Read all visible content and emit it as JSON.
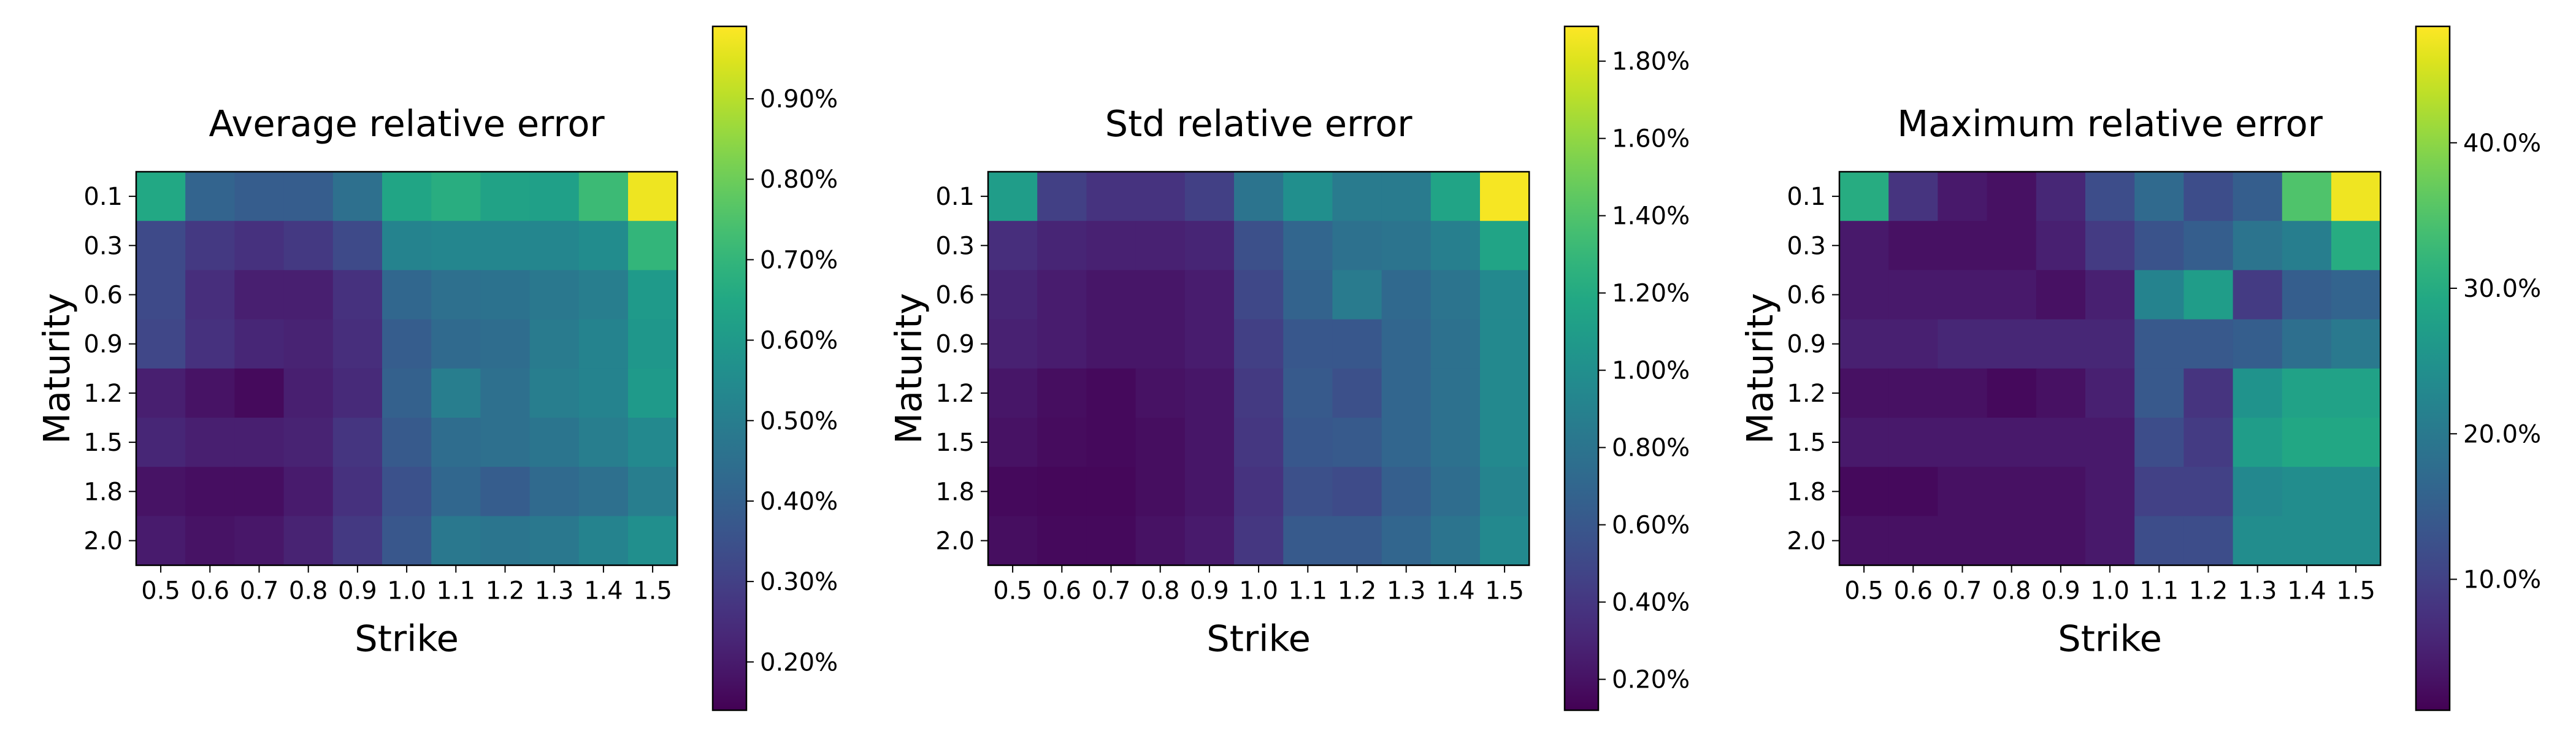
{
  "chart_data": [
    {
      "type": "heatmap",
      "title": "Average relative error",
      "xlabel": "Strike",
      "ylabel": "Maturity",
      "x_categories": [
        "0.5",
        "0.6",
        "0.7",
        "0.8",
        "0.9",
        "1.0",
        "1.1",
        "1.2",
        "1.3",
        "1.4",
        "1.5"
      ],
      "y_categories": [
        "0.1",
        "0.3",
        "0.6",
        "0.9",
        "1.2",
        "1.5",
        "1.8",
        "2.0"
      ],
      "colormap": "viridis",
      "clim": [
        0.14,
        0.99
      ],
      "colorbar_ticks": [
        {
          "value": 0.2,
          "label": "0.20%"
        },
        {
          "value": 0.3,
          "label": "0.30%"
        },
        {
          "value": 0.4,
          "label": "0.40%"
        },
        {
          "value": 0.5,
          "label": "0.50%"
        },
        {
          "value": 0.6,
          "label": "0.60%"
        },
        {
          "value": 0.7,
          "label": "0.70%"
        },
        {
          "value": 0.8,
          "label": "0.80%"
        },
        {
          "value": 0.9,
          "label": "0.90%"
        }
      ],
      "values": [
        [
          0.65,
          0.41,
          0.39,
          0.39,
          0.45,
          0.64,
          0.67,
          0.63,
          0.62,
          0.72,
          0.97
        ],
        [
          0.33,
          0.28,
          0.26,
          0.28,
          0.33,
          0.52,
          0.53,
          0.53,
          0.53,
          0.55,
          0.7
        ],
        [
          0.33,
          0.25,
          0.21,
          0.21,
          0.26,
          0.42,
          0.45,
          0.46,
          0.48,
          0.5,
          0.6
        ],
        [
          0.32,
          0.26,
          0.23,
          0.22,
          0.25,
          0.39,
          0.43,
          0.44,
          0.49,
          0.52,
          0.59
        ],
        [
          0.21,
          0.18,
          0.16,
          0.21,
          0.24,
          0.4,
          0.5,
          0.45,
          0.5,
          0.52,
          0.6
        ],
        [
          0.23,
          0.21,
          0.21,
          0.22,
          0.27,
          0.38,
          0.44,
          0.45,
          0.47,
          0.5,
          0.54
        ],
        [
          0.18,
          0.17,
          0.17,
          0.2,
          0.26,
          0.35,
          0.42,
          0.39,
          0.43,
          0.45,
          0.5
        ],
        [
          0.2,
          0.18,
          0.19,
          0.22,
          0.28,
          0.37,
          0.48,
          0.47,
          0.48,
          0.52,
          0.56
        ]
      ]
    },
    {
      "type": "heatmap",
      "title": "Std relative error",
      "xlabel": "Strike",
      "ylabel": "Maturity",
      "x_categories": [
        "0.5",
        "0.6",
        "0.7",
        "0.8",
        "0.9",
        "1.0",
        "1.1",
        "1.2",
        "1.3",
        "1.4",
        "1.5"
      ],
      "y_categories": [
        "0.1",
        "0.3",
        "0.6",
        "0.9",
        "1.2",
        "1.5",
        "1.8",
        "2.0"
      ],
      "colormap": "viridis",
      "clim": [
        0.12,
        1.89
      ],
      "colorbar_ticks": [
        {
          "value": 0.2,
          "label": "0.20%"
        },
        {
          "value": 0.4,
          "label": "0.40%"
        },
        {
          "value": 0.6,
          "label": "0.60%"
        },
        {
          "value": 0.8,
          "label": "0.80%"
        },
        {
          "value": 1.0,
          "label": "1.00%"
        },
        {
          "value": 1.2,
          "label": "1.20%"
        },
        {
          "value": 1.4,
          "label": "1.40%"
        },
        {
          "value": 1.6,
          "label": "1.60%"
        },
        {
          "value": 1.8,
          "label": "1.80%"
        }
      ],
      "values": [
        [
          1.1,
          0.45,
          0.38,
          0.38,
          0.45,
          0.8,
          1.0,
          0.85,
          0.85,
          1.15,
          1.87
        ],
        [
          0.35,
          0.3,
          0.28,
          0.28,
          0.3,
          0.55,
          0.7,
          0.78,
          0.8,
          0.88,
          1.15
        ],
        [
          0.3,
          0.25,
          0.22,
          0.22,
          0.25,
          0.5,
          0.68,
          0.85,
          0.72,
          0.8,
          0.95
        ],
        [
          0.28,
          0.25,
          0.22,
          0.22,
          0.25,
          0.45,
          0.6,
          0.6,
          0.7,
          0.78,
          0.95
        ],
        [
          0.22,
          0.18,
          0.16,
          0.2,
          0.22,
          0.42,
          0.62,
          0.55,
          0.7,
          0.78,
          0.95
        ],
        [
          0.2,
          0.17,
          0.16,
          0.18,
          0.22,
          0.4,
          0.6,
          0.62,
          0.7,
          0.78,
          0.95
        ],
        [
          0.16,
          0.15,
          0.15,
          0.18,
          0.22,
          0.38,
          0.55,
          0.52,
          0.65,
          0.75,
          0.92
        ],
        [
          0.18,
          0.16,
          0.16,
          0.2,
          0.24,
          0.4,
          0.62,
          0.62,
          0.7,
          0.8,
          0.95
        ]
      ]
    },
    {
      "type": "heatmap",
      "title": "Maximum relative error",
      "xlabel": "Strike",
      "ylabel": "Maturity",
      "x_categories": [
        "0.5",
        "0.6",
        "0.7",
        "0.8",
        "0.9",
        "1.0",
        "1.1",
        "1.2",
        "1.3",
        "1.4",
        "1.5"
      ],
      "y_categories": [
        "0.1",
        "0.3",
        "0.6",
        "0.9",
        "1.2",
        "1.5",
        "1.8",
        "2.0"
      ],
      "colormap": "viridis",
      "clim": [
        1.0,
        48.0
      ],
      "colorbar_ticks": [
        {
          "value": 10,
          "label": "10.0%"
        },
        {
          "value": 20,
          "label": "20.0%"
        },
        {
          "value": 30,
          "label": "30.0%"
        },
        {
          "value": 40,
          "label": "40.0%"
        }
      ],
      "values": [
        [
          30,
          8,
          4,
          3,
          6,
          12,
          17,
          12,
          15,
          35,
          47
        ],
        [
          4,
          3,
          3,
          3,
          5,
          9,
          13,
          15,
          19,
          21,
          30
        ],
        [
          4,
          4,
          4,
          4,
          3,
          5,
          22,
          27,
          9,
          15,
          16
        ],
        [
          5,
          5,
          6,
          6,
          6,
          6,
          14,
          14,
          15,
          18,
          20
        ],
        [
          3,
          3,
          3,
          2,
          3,
          5,
          14,
          8,
          25,
          28,
          28
        ],
        [
          4,
          4,
          4,
          4,
          4,
          4,
          12,
          9,
          27,
          29,
          29
        ],
        [
          2,
          2,
          3,
          3,
          3,
          4,
          10,
          10,
          23,
          24,
          24
        ],
        [
          3,
          3,
          3,
          3,
          3,
          4,
          12,
          12,
          24,
          24,
          24
        ]
      ]
    }
  ]
}
